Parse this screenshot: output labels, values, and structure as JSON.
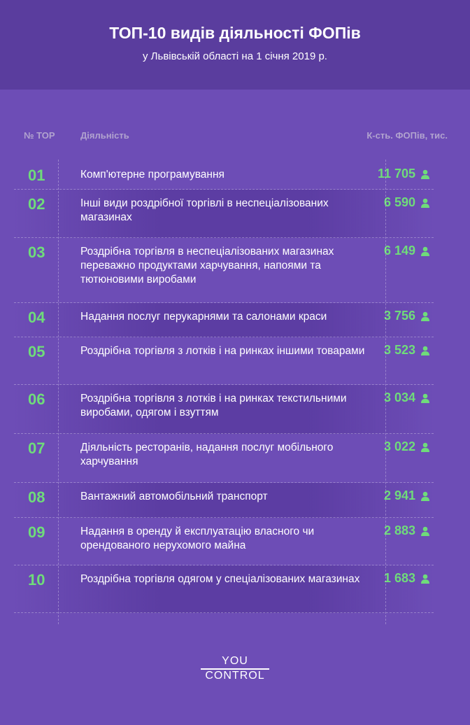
{
  "header": {
    "title": "ТОП-10 видів діяльності ФОПів",
    "subtitle": "у Львівській області на 1 січня 2019 р."
  },
  "chart_data": {
    "type": "table",
    "columns": [
      "№ TOP",
      "Діяльність",
      "К-сть. ФОПів, тис."
    ],
    "rows": [
      {
        "rank": "01",
        "activity": "Комп'ютерне програмування",
        "value": "11 705"
      },
      {
        "rank": "02",
        "activity": "Інші види роздрібної торгівлі в неспеціалізованих магазинах",
        "value": "6 590"
      },
      {
        "rank": "03",
        "activity": "Роздрібна торгівля в неспеціалізованих магазинах переважно продуктами харчування, напоями та тютюновими виробами",
        "value": "6 149"
      },
      {
        "rank": "04",
        "activity": "Надання послуг перукарнями та салонами краси",
        "value": "3 756"
      },
      {
        "rank": "05",
        "activity": "Роздрібна торгівля з лотків і на ринках іншими товарами",
        "value": "3 523"
      },
      {
        "rank": "06",
        "activity": "Роздрібна торгівля з лотків і на ринках текстильними виробами, одягом і взуттям",
        "value": "3 034"
      },
      {
        "rank": "07",
        "activity": "Діяльність ресторанів, надання послуг мобільного харчування",
        "value": "3 022"
      },
      {
        "rank": "08",
        "activity": "Вантажний автомобільний транспорт",
        "value": "2 941"
      },
      {
        "rank": "09",
        "activity": "Надання в оренду й експлуатацію власного чи орендованого нерухомого майна",
        "value": "2 883"
      },
      {
        "rank": "10",
        "activity": "Роздрібна торгівля одягом у спеціалізованих магазинах",
        "value": "1 683"
      }
    ],
    "colors": {
      "background": "#6d4db6",
      "header": "#5a3d9e",
      "accent": "#6fdc7a"
    },
    "icon": "person-icon"
  },
  "logo": {
    "line1": "YOU",
    "line2": "CONTROL"
  }
}
